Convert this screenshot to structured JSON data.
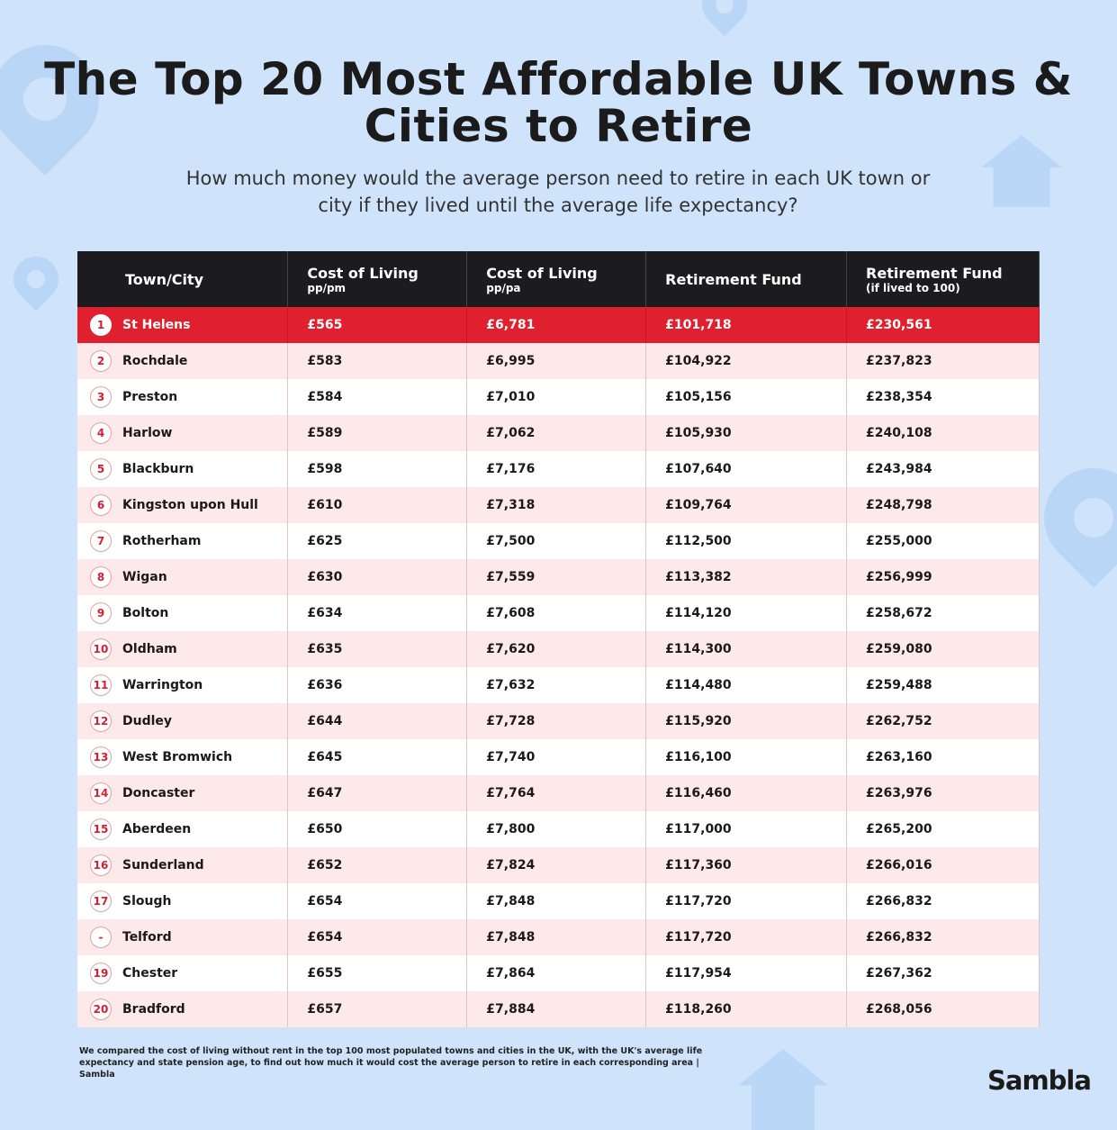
{
  "title": "The Top 20 Most Affordable UK Towns & Cities to Retire",
  "subtitle": "How much money would the average person need to retire in each UK town or city if they lived until the average life expectancy?",
  "colors": {
    "header": "#1c1c1e",
    "highlight": "#e0202e",
    "alt_row": "#fde9e9",
    "background": "#cfe3fb"
  },
  "chart_data": {
    "type": "table",
    "columns": [
      {
        "label": "Town/City",
        "sub": ""
      },
      {
        "label": "Cost of Living",
        "sub": "pp/pm"
      },
      {
        "label": "Cost of Living",
        "sub": "pp/pa"
      },
      {
        "label": "Retirement Fund",
        "sub": ""
      },
      {
        "label": "Retirement Fund",
        "sub": "(if lived to 100)"
      }
    ],
    "rows": [
      [
        "1",
        "St Helens",
        "£565",
        "£6,781",
        "£101,718",
        "£230,561"
      ],
      [
        "2",
        "Rochdale",
        "£583",
        "£6,995",
        "£104,922",
        "£237,823"
      ],
      [
        "3",
        "Preston",
        "£584",
        "£7,010",
        "£105,156",
        "£238,354"
      ],
      [
        "4",
        "Harlow",
        "£589",
        "£7,062",
        "£105,930",
        "£240,108"
      ],
      [
        "5",
        "Blackburn",
        "£598",
        "£7,176",
        "£107,640",
        "£243,984"
      ],
      [
        "6",
        "Kingston upon Hull",
        "£610",
        "£7,318",
        "£109,764",
        "£248,798"
      ],
      [
        "7",
        "Rotherham",
        "£625",
        "£7,500",
        "£112,500",
        "£255,000"
      ],
      [
        "8",
        "Wigan",
        "£630",
        "£7,559",
        "£113,382",
        "£256,999"
      ],
      [
        "9",
        "Bolton",
        "£634",
        "£7,608",
        "£114,120",
        "£258,672"
      ],
      [
        "10",
        "Oldham",
        "£635",
        "£7,620",
        "£114,300",
        "£259,080"
      ],
      [
        "11",
        "Warrington",
        "£636",
        "£7,632",
        "£114,480",
        "£259,488"
      ],
      [
        "12",
        "Dudley",
        "£644",
        "£7,728",
        "£115,920",
        "£262,752"
      ],
      [
        "13",
        "West Bromwich",
        "£645",
        "£7,740",
        "£116,100",
        "£263,160"
      ],
      [
        "14",
        "Doncaster",
        "£647",
        "£7,764",
        "£116,460",
        "£263,976"
      ],
      [
        "15",
        "Aberdeen",
        "£650",
        "£7,800",
        "£117,000",
        "£265,200"
      ],
      [
        "16",
        "Sunderland",
        "£652",
        "£7,824",
        "£117,360",
        "£266,016"
      ],
      [
        "17",
        "Slough",
        "£654",
        "£7,848",
        "£117,720",
        "£266,832"
      ],
      [
        "-",
        "Telford",
        "£654",
        "£7,848",
        "£117,720",
        "£266,832"
      ],
      [
        "19",
        "Chester",
        "£655",
        "£7,864",
        "£117,954",
        "£267,362"
      ],
      [
        "20",
        "Bradford",
        "£657",
        "£7,884",
        "£118,260",
        "£268,056"
      ]
    ]
  },
  "footnote": "We compared the cost of living without rent in the top 100 most populated towns and cities in the UK, with the UK's average life expectancy and state pension age, to find out how much it would cost the average person to retire in each corresponding area | Sambla",
  "logo": "Sambla"
}
